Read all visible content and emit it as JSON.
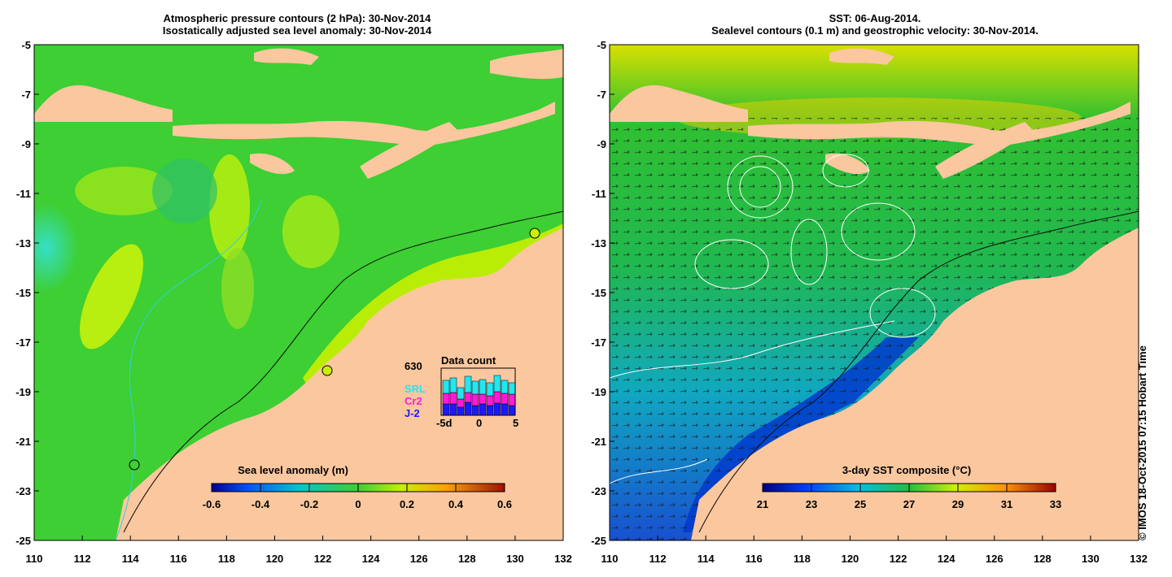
{
  "left_panel": {
    "title_line1": "Atmospheric pressure contours (2 hPa): 30-Nov-2014",
    "title_line2": "Isostatically adjusted sea level anomaly: 30-Nov-2014",
    "colorbar_title": "Sea level anomaly (m)",
    "colorbar_ticks": [
      "-0.6",
      "-0.4",
      "-0.2",
      "0",
      "0.2",
      "0.4",
      "0.6"
    ],
    "data_count": {
      "title": "Data count",
      "max_label": "630",
      "legend": [
        "SRL",
        "Cr2",
        "J-2"
      ],
      "legend_colors": [
        "#22e6f0",
        "#ff1ad9",
        "#1a1aff"
      ],
      "x_ticks": [
        "-5d",
        "0",
        "5"
      ]
    }
  },
  "right_panel": {
    "title_line1": "SST: 06-Aug-2014.",
    "title_line2": "Sealevel contours (0.1 m) and geostrophic velocity: 30-Nov-2014.",
    "colorbar_title": "3-day SST composite (°C)",
    "colorbar_ticks": [
      "21",
      "23",
      "25",
      "27",
      "29",
      "31",
      "33"
    ]
  },
  "axes": {
    "lat_ticks": [
      "-5",
      "-7",
      "-9",
      "-11",
      "-13",
      "-15",
      "-17",
      "-19",
      "-21",
      "-23",
      "-25"
    ],
    "lon_ticks": [
      "110",
      "112",
      "114",
      "116",
      "118",
      "120",
      "122",
      "124",
      "126",
      "128",
      "130",
      "132"
    ]
  },
  "colors": {
    "land": "#fac79f",
    "sla_ocean": "#3dcf33",
    "sst_ocean": "#33b84a"
  },
  "watermark": "© IMOS 18-Oct-2015 07:15 Hobart Time"
}
